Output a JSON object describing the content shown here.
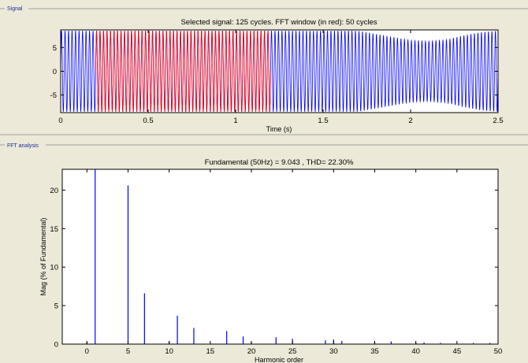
{
  "panels": {
    "signal_label": "Signal",
    "fft_label": "FFT analysis"
  },
  "colors": {
    "background": "#ece9d8",
    "plot_bg": "#ffffff",
    "signal": "#0000ff",
    "fft_window": "#ff0000",
    "bar": "#0000ff",
    "panel_label": "#1a2b9a"
  },
  "chart_data": [
    {
      "type": "line",
      "title": "Selected signal: 125 cycles. FFT window (in red): 50 cycles",
      "xlabel": "Time (s)",
      "ylabel": "",
      "xlim": [
        0,
        2.5
      ],
      "ylim": [
        -8.7,
        8.7
      ],
      "xticks": [
        "0",
        "0.5",
        "1",
        "1.5",
        "2",
        "2.5"
      ],
      "yticks": [
        "5",
        "0",
        "-5"
      ],
      "frequency_hz": 50,
      "cycles": 125,
      "series": [
        {
          "color": "#0000ff",
          "x_range": [
            0,
            2.5
          ]
        },
        {
          "color": "#ff0000",
          "x_range": [
            0.2,
            1.2
          ]
        }
      ],
      "amplitude_envelope": {
        "x": [
          0,
          1.7,
          1.9,
          2.0,
          2.1,
          2.2,
          2.3,
          2.4,
          2.5
        ],
        "y": [
          8.5,
          8.5,
          7.2,
          6.5,
          6.3,
          6.6,
          7.5,
          8.2,
          8.5
        ]
      },
      "grid": false
    },
    {
      "type": "bar",
      "title": "Fundamental (50Hz) = 9.043 , THD= 22.30%",
      "xlabel": "Harmonic order",
      "ylabel": "Mag (% of Fundamental)",
      "xlim": [
        -3,
        50
      ],
      "ylim": [
        0,
        22.7
      ],
      "xticks": [
        "0",
        "5",
        "10",
        "15",
        "20",
        "25",
        "30",
        "35",
        "40",
        "45",
        "50"
      ],
      "yticks": [
        "0",
        "5",
        "10",
        "15",
        "20"
      ],
      "x": [
        0,
        1,
        5,
        7,
        10,
        11,
        13,
        17,
        19,
        20,
        23,
        25,
        29,
        30,
        31,
        35,
        37,
        40,
        41,
        43,
        47,
        49
      ],
      "values": [
        0.3,
        22.7,
        20.6,
        6.6,
        0.4,
        3.7,
        2.1,
        1.7,
        1.0,
        0.3,
        0.9,
        0.7,
        0.5,
        0.6,
        0.4,
        0.3,
        0.35,
        0.2,
        0.2,
        0.15,
        0.15,
        0.15
      ],
      "grid": false
    }
  ]
}
